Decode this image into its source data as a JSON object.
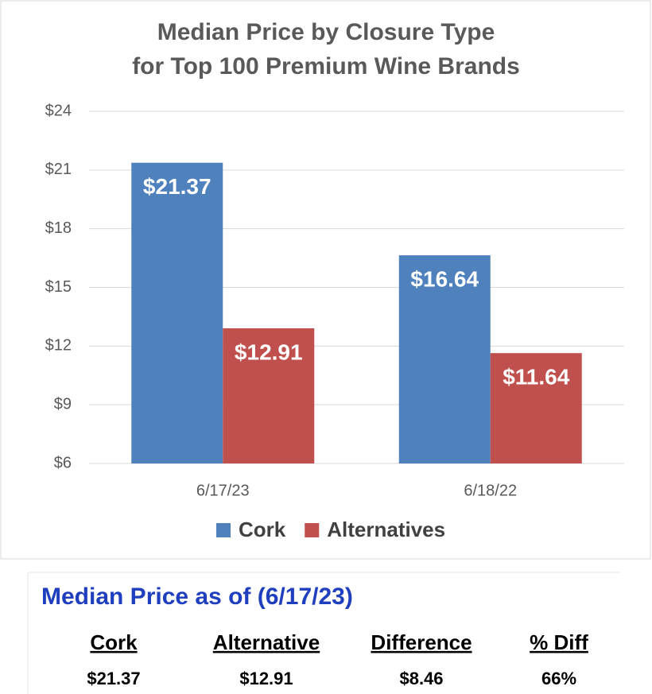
{
  "chart_data": {
    "type": "bar",
    "title": [
      "Median Price by Closure Type",
      "for Top 100 Premium Wine Brands"
    ],
    "categories": [
      "6/17/23",
      "6/18/22"
    ],
    "series": [
      {
        "name": "Cork",
        "color": "#4f81bd",
        "values": [
          21.37,
          16.64
        ],
        "value_labels": [
          "$21.37",
          "$16.64"
        ]
      },
      {
        "name": "Alternatives",
        "color": "#c0504d",
        "values": [
          12.91,
          11.64
        ],
        "value_labels": [
          "$12.91",
          "$11.64"
        ]
      }
    ],
    "ylim": [
      6,
      24
    ],
    "yticks": [
      {
        "value": 6,
        "label": "$6"
      },
      {
        "value": 9,
        "label": "$9"
      },
      {
        "value": 12,
        "label": "$12"
      },
      {
        "value": 15,
        "label": "$15"
      },
      {
        "value": 18,
        "label": "$18"
      },
      {
        "value": 21,
        "label": "$21"
      },
      {
        "value": 24,
        "label": "$24"
      }
    ],
    "grid": true,
    "legend": "bottom"
  },
  "table": {
    "title": "Median Price as of (6/17/23)",
    "headers": [
      "Cork",
      "Alternative",
      "Difference",
      "% Diff"
    ],
    "rows": [
      [
        "$21.37",
        "$12.91",
        "$8.46",
        "66%"
      ]
    ]
  }
}
